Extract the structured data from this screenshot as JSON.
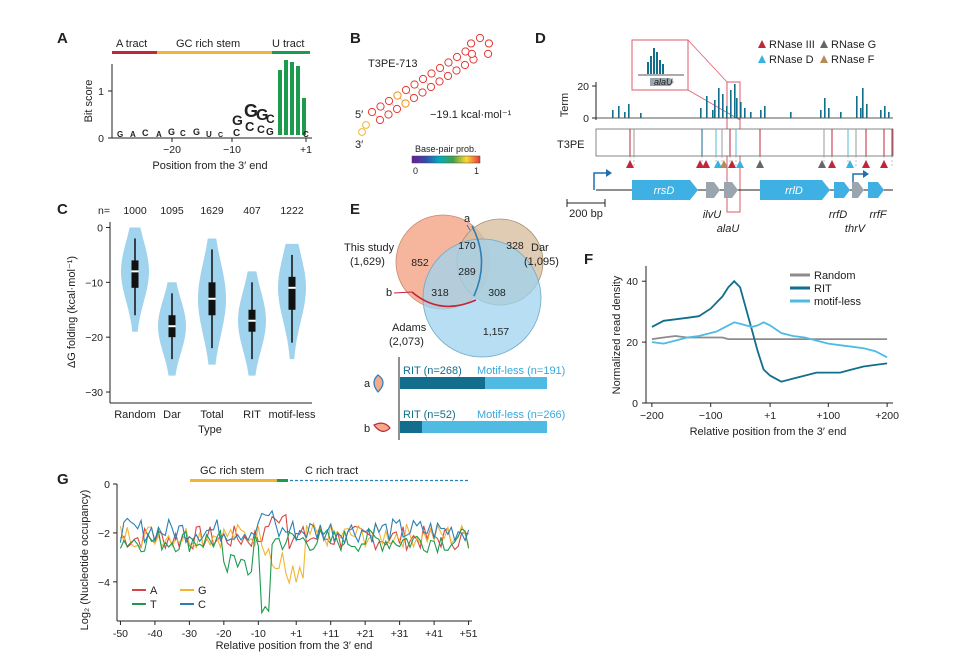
{
  "panels": {
    "A": {
      "label": "A",
      "tracts": [
        {
          "name": "A tract",
          "color": "#c0273a"
        },
        {
          "name": "GC rich stem",
          "color": "#f0b632"
        },
        {
          "name": "U tract",
          "color": "#1c9a4e"
        }
      ],
      "ylabel": "Bit score",
      "xlabel": "Position from the 3′ end",
      "yticks": [
        "0",
        "1"
      ],
      "xticks": [
        "−20",
        "−10",
        "+1"
      ]
    },
    "B": {
      "label": "B",
      "title": "T3PE-713",
      "five_prime": "5′",
      "three_prime": "3′",
      "energy": "−19.1 kcal·mol⁻¹",
      "legend_title": "Base-pair prob.",
      "legend_min": "0",
      "legend_max": "1"
    },
    "C": {
      "label": "C",
      "n_prefix": "n=",
      "ylabel": "ΔG folding (kcal·mol⁻¹)",
      "xlabel": "Type",
      "yticks": [
        "0",
        "−10",
        "−20",
        "−30"
      ]
    },
    "D": {
      "label": "D",
      "term_label": "Term",
      "term_tick": "20",
      "term_zero": "0",
      "t3pe_label": "T3PE",
      "inset_gene": "alaU",
      "legend": [
        {
          "name": "RNase III",
          "color": "#c0273a"
        },
        {
          "name": "RNase G",
          "color": "#666666"
        },
        {
          "name": "RNase D",
          "color": "#39b2e3"
        },
        {
          "name": "RNase F",
          "color": "#b38b5d"
        }
      ],
      "scale": "200 bp",
      "genes": [
        "rrsD",
        "rrlD"
      ],
      "gene_labels": [
        "ilvU",
        "alaU",
        "rrfD",
        "thrV",
        "rrfF"
      ]
    },
    "E": {
      "label": "E",
      "sets": [
        {
          "name": "This study",
          "count": "(1,629)"
        },
        {
          "name": "Dar",
          "count": "(1,095)"
        },
        {
          "name": "Adams",
          "count": "(2,073)"
        }
      ],
      "regions": [
        "852",
        "170",
        "328",
        "289",
        "318",
        "308",
        "1,157"
      ],
      "marks": [
        "a",
        "b"
      ],
      "bars": [
        {
          "mark": "a",
          "rit": "RIT (n=268)",
          "motif": "Motif-less (n=191)"
        },
        {
          "mark": "b",
          "rit": "RIT (n=52)",
          "motif": "Motif-less (n=266)"
        }
      ]
    },
    "F": {
      "label": "F",
      "ylabel": "Normalized read density",
      "xlabel": "Relative position from the 3′ end",
      "yticks": [
        "0",
        "20",
        "40"
      ],
      "xticks": [
        "−200",
        "−100",
        "+1",
        "+100",
        "+200"
      ]
    },
    "G": {
      "label": "G",
      "tracts": [
        {
          "name": "GC rich stem",
          "color": "#f0b632"
        },
        {
          "name": "C rich tract",
          "color": "#2a7fb5"
        }
      ],
      "ylabel": "Log₂ (Nucleotide occupancy)",
      "xlabel": "Relative position from the 3′ end",
      "yticks": [
        "0",
        "−2",
        "−4"
      ],
      "xticks": [
        "-50",
        "-40",
        "-30",
        "-20",
        "-10",
        "+1",
        "+11",
        "+21",
        "+31",
        "+41",
        "+51"
      ]
    }
  },
  "chart_data": [
    {
      "panel": "C",
      "type": "violin",
      "categories": [
        "Random",
        "Dar",
        "Total",
        "RIT",
        "motif-less"
      ],
      "n": [
        "1000",
        "1095",
        "1629",
        "407",
        "1222"
      ],
      "medians": [
        -8,
        -18,
        -13,
        -17,
        -11
      ],
      "q1": [
        -11,
        -20,
        -16,
        -19,
        -15
      ],
      "q3": [
        -6,
        -16,
        -10,
        -15,
        -9
      ],
      "whisker_low": [
        -16,
        -24,
        -22,
        -24,
        -21
      ],
      "whisker_high": [
        -2,
        -12,
        -4,
        -10,
        -5
      ],
      "ylim": [
        -32,
        1
      ],
      "color": "#9fd3ee"
    },
    {
      "panel": "F",
      "type": "line",
      "x": [
        -200,
        -180,
        -160,
        -140,
        -120,
        -100,
        -90,
        -80,
        -70,
        -60,
        -50,
        -40,
        -30,
        -20,
        -10,
        1,
        20,
        40,
        60,
        80,
        100,
        120,
        140,
        160,
        180,
        200
      ],
      "series": [
        {
          "name": "Random",
          "color": "#8c8c8c",
          "values": [
            21,
            21.5,
            22,
            21.5,
            21.5,
            21.5,
            21.5,
            21.5,
            21,
            21,
            21,
            21,
            21,
            21,
            21,
            21,
            21,
            21,
            21,
            21,
            21,
            21,
            21,
            21,
            21,
            21
          ]
        },
        {
          "name": "RIT",
          "color": "#126e8c",
          "values": [
            25,
            27,
            27.5,
            28,
            28.5,
            31,
            33,
            35,
            38,
            40,
            38,
            31,
            24,
            17,
            11,
            9,
            7,
            8,
            9,
            10,
            10,
            10,
            11,
            12,
            12.5,
            13
          ]
        },
        {
          "name": "motif-less",
          "color": "#4fbbe3",
          "values": [
            20,
            19.5,
            20.5,
            21.5,
            22,
            23,
            23.5,
            24.5,
            25.5,
            26.5,
            26,
            25.5,
            25,
            25.5,
            26.5,
            25.5,
            23,
            22,
            21.5,
            20.5,
            19.5,
            19,
            18.5,
            18,
            17,
            15
          ]
        }
      ],
      "ylim": [
        0,
        45
      ],
      "xlim": [
        -210,
        210
      ],
      "legend": "top-right"
    },
    {
      "panel": "G",
      "type": "line",
      "series": [
        {
          "name": "A",
          "color": "#d64545"
        },
        {
          "name": "G",
          "color": "#f0b632"
        },
        {
          "name": "T",
          "color": "#1c9a4e"
        },
        {
          "name": "C",
          "color": "#2a7fb5"
        }
      ],
      "ylim": [
        -5.6,
        0
      ],
      "xlim": [
        -51,
        52
      ],
      "legend": "bottom-left"
    }
  ]
}
